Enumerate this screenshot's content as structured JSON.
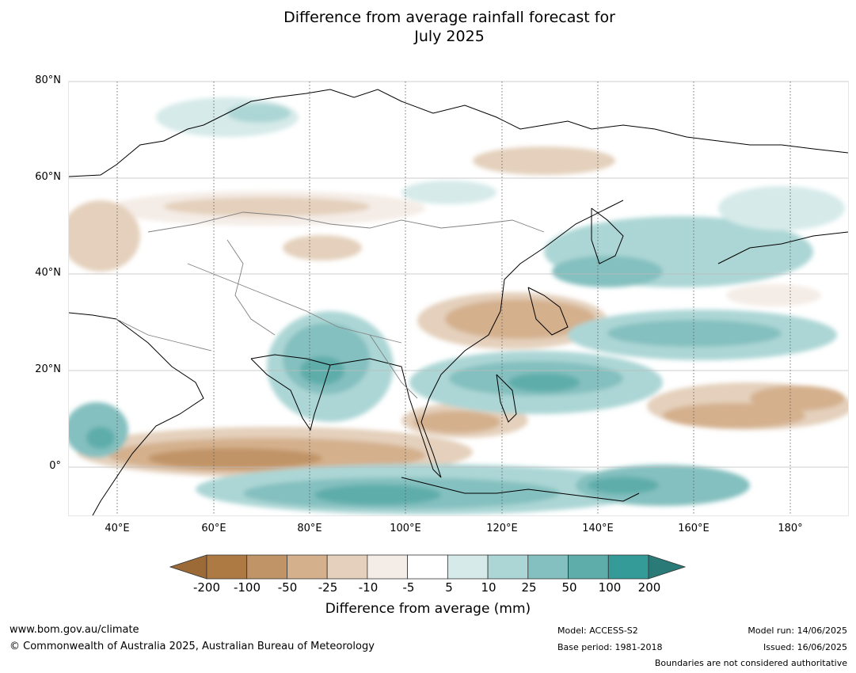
{
  "title_line1": "Difference from average rainfall forecast for",
  "title_line2": "July 2025",
  "map": {
    "lat_labels": [
      "80°N",
      "60°N",
      "40°N",
      "20°N",
      "0°"
    ],
    "lon_labels": [
      "40°E",
      "60°E",
      "80°E",
      "100°E",
      "120°E",
      "140°E",
      "160°E",
      "180°"
    ]
  },
  "colorbar": {
    "title": "Difference from average (mm)",
    "tick_labels": [
      "-200",
      "-100",
      "-50",
      "-25",
      "-10",
      "-5",
      "5",
      "10",
      "25",
      "50",
      "100",
      "200"
    ],
    "colors": [
      "#9b6a36",
      "#ad7a43",
      "#c19467",
      "#d4b08d",
      "#e4d0bc",
      "#f4ece6",
      "#ffffff",
      "#d6eae9",
      "#acd6d5",
      "#84c0bf",
      "#5fadab",
      "#359b99",
      "#2a7a78"
    ]
  },
  "footer": {
    "website": "www.bom.gov.au/climate",
    "copyright": "© Commonwealth of Australia 2025, Australian Bureau of Meteorology",
    "model": "Model: ACCESS-S2",
    "base_period": "Base period: 1981-2018",
    "model_run": "Model run: 14/06/2025",
    "issued": "Issued: 16/06/2025",
    "disclaimer": "Boundaries are not considered authoritative"
  }
}
